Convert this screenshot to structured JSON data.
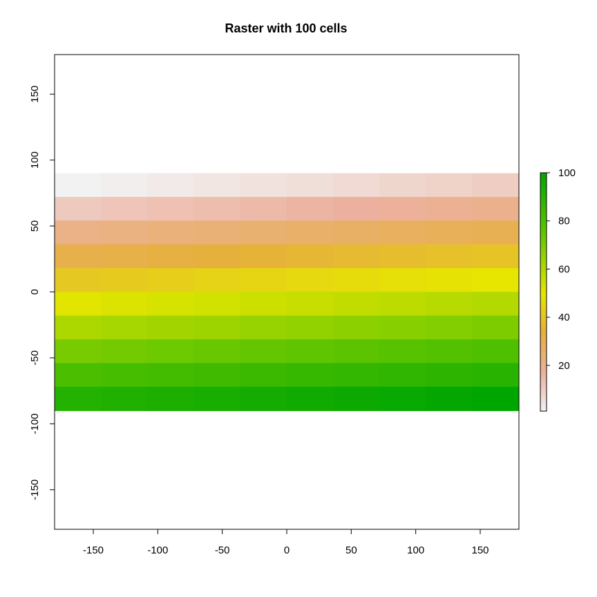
{
  "chart_data": {
    "type": "heatmap",
    "title": "Raster with 100 cells",
    "xlabel": "",
    "ylabel": "",
    "xlim": [
      -180,
      180
    ],
    "ylim": [
      -180,
      180
    ],
    "xticks": [
      -150,
      -100,
      -50,
      0,
      50,
      100,
      150
    ],
    "yticks": [
      -150,
      -100,
      -50,
      0,
      50,
      100,
      150
    ],
    "extent": {
      "xmin": -180,
      "xmax": 180,
      "ymin": -90,
      "ymax": 90
    },
    "ncol": 10,
    "nrow": 10,
    "cell_order": "row-major from top-left",
    "values": [
      [
        1,
        2,
        3,
        4,
        5,
        6,
        7,
        8,
        9,
        10
      ],
      [
        11,
        12,
        13,
        14,
        15,
        16,
        17,
        18,
        19,
        20
      ],
      [
        21,
        22,
        23,
        24,
        25,
        26,
        27,
        28,
        29,
        30
      ],
      [
        31,
        32,
        33,
        34,
        35,
        36,
        37,
        38,
        39,
        40
      ],
      [
        41,
        42,
        43,
        44,
        45,
        46,
        47,
        48,
        49,
        50
      ],
      [
        51,
        52,
        53,
        54,
        55,
        56,
        57,
        58,
        59,
        60
      ],
      [
        61,
        62,
        63,
        64,
        65,
        66,
        67,
        68,
        69,
        70
      ],
      [
        71,
        72,
        73,
        74,
        75,
        76,
        77,
        78,
        79,
        80
      ],
      [
        81,
        82,
        83,
        84,
        85,
        86,
        87,
        88,
        89,
        90
      ],
      [
        91,
        92,
        93,
        94,
        95,
        96,
        97,
        98,
        99,
        100
      ]
    ],
    "legend": {
      "placement": "right",
      "range": [
        1,
        100
      ],
      "ticks": [
        20,
        40,
        60,
        80,
        100
      ]
    },
    "colormap": "terrain (reversed)",
    "colormap_stops": [
      {
        "value": 1,
        "color": "#F2F2F2"
      },
      {
        "value": 17,
        "color": "#ECB19E"
      },
      {
        "value": 34,
        "color": "#E6B03C"
      },
      {
        "value": 50,
        "color": "#E6E600"
      },
      {
        "value": 75,
        "color": "#63C600"
      },
      {
        "value": 100,
        "color": "#00A600"
      }
    ],
    "grid": false
  }
}
